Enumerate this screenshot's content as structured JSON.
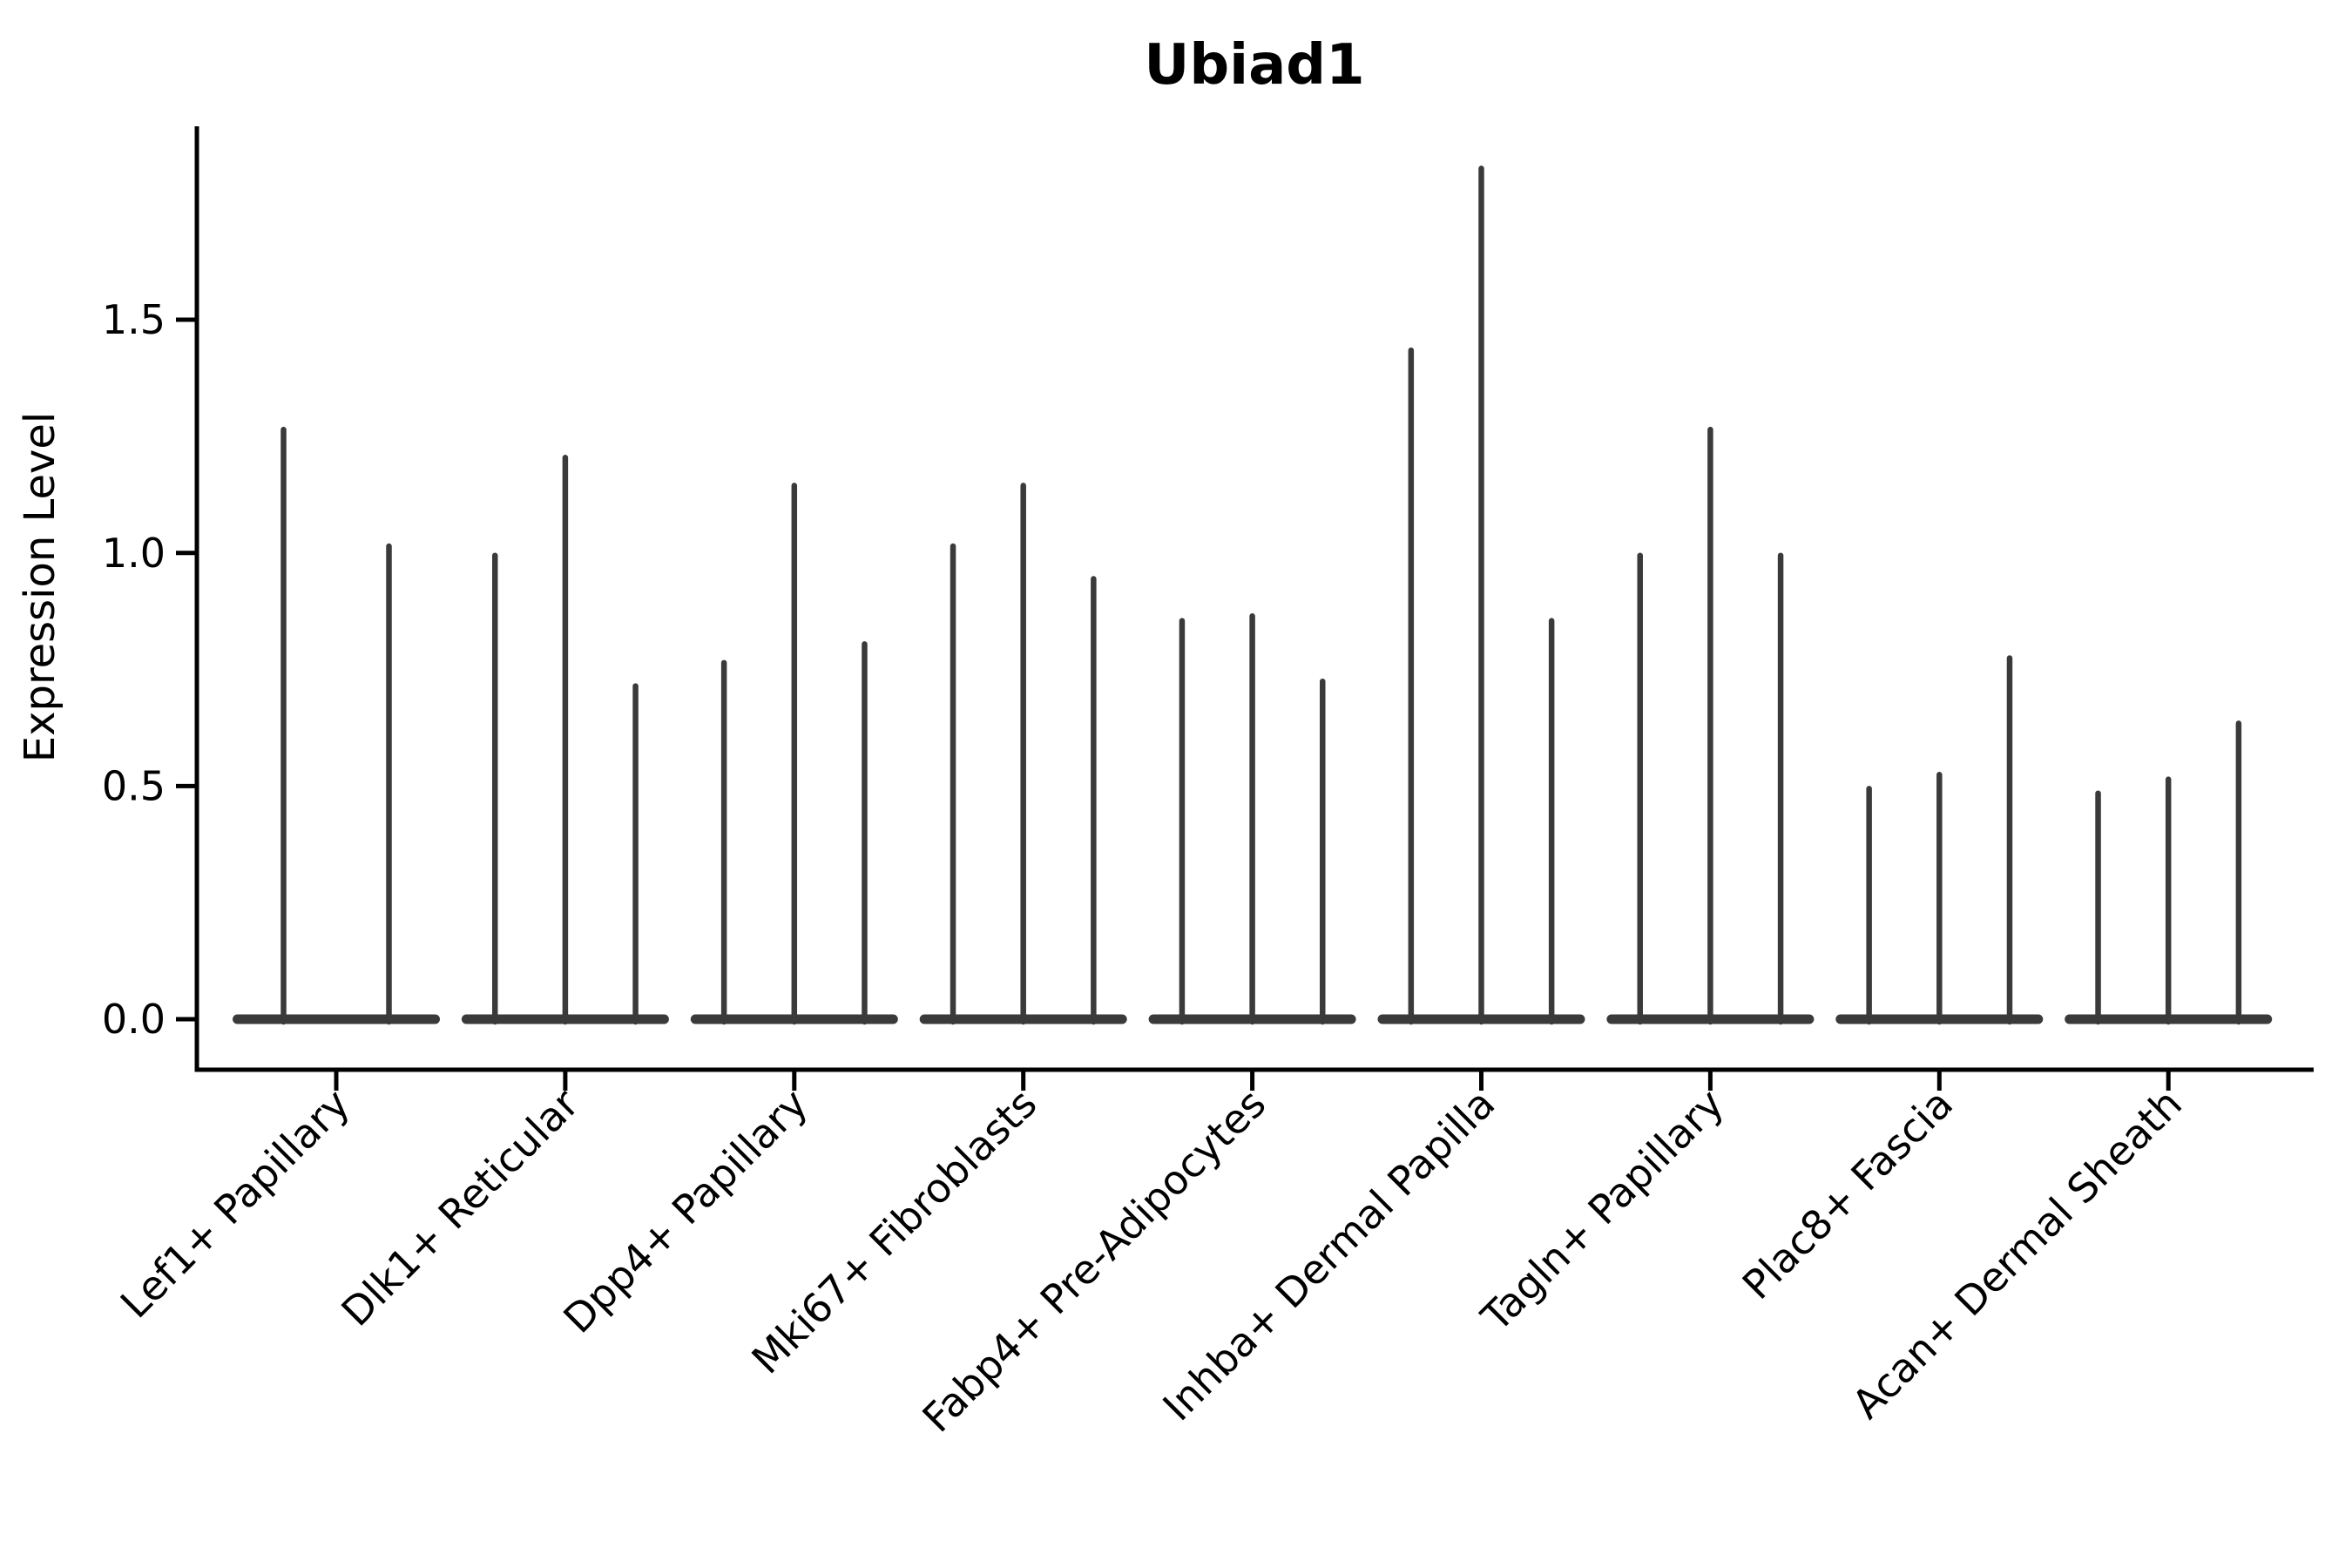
{
  "chart_data": {
    "type": "violin",
    "title": "Ubiad1",
    "ylabel": "Expression Level",
    "xlabel": "",
    "legend": "none",
    "grid": false,
    "background": "#ffffff",
    "yticks": [
      {
        "value": 0.0,
        "label": "0.0"
      },
      {
        "value": 0.5,
        "label": "0.5"
      },
      {
        "value": 1.0,
        "label": "1.0"
      },
      {
        "value": 1.5,
        "label": "1.5"
      }
    ],
    "ylim": [
      -0.11,
      1.92
    ],
    "categories": [
      "Lef1+ Papillary",
      "Dlk1+ Reticular",
      "Dpp4+ Papillary",
      "Mki67+ Fibroblasts",
      "Fabp4+ Pre-Adipocytes",
      "Inhba+ Dermal Papilla",
      "Tagln+ Papillary",
      "Plac8+ Fascia",
      "Acan+ Dermal Sheath"
    ],
    "groups": [
      {
        "label": "Lef1+ Papillary",
        "violin_maxima": [
          1.27,
          1.02
        ]
      },
      {
        "label": "Dlk1+ Reticular",
        "violin_maxima": [
          1.0,
          1.21,
          0.72
        ]
      },
      {
        "label": "Dpp4+ Papillary",
        "violin_maxima": [
          0.77,
          1.15,
          0.81
        ]
      },
      {
        "label": "Mki67+ Fibroblasts",
        "violin_maxima": [
          1.02,
          1.15,
          0.95
        ]
      },
      {
        "label": "Fabp4+ Pre-Adipocytes",
        "violin_maxima": [
          0.86,
          0.87,
          0.73
        ]
      },
      {
        "label": "Inhba+ Dermal Papilla",
        "violin_maxima": [
          1.44,
          1.83,
          0.86
        ]
      },
      {
        "label": "Tagln+ Papillary",
        "violin_maxima": [
          1.0,
          1.27,
          1.0
        ]
      },
      {
        "label": "Plac8+ Fascia",
        "violin_maxima": [
          0.5,
          0.53,
          0.78
        ]
      },
      {
        "label": "Acan+ Dermal Sheath",
        "violin_maxima": [
          0.49,
          0.52,
          0.64
        ]
      }
    ],
    "distribution_note": "each violin is collapsed at 0 with a thin spike rising to its maximum expression value",
    "colors": {
      "violin": "#3a3a3a",
      "axis": "#000000",
      "text": "#000000",
      "background": "#ffffff"
    }
  }
}
